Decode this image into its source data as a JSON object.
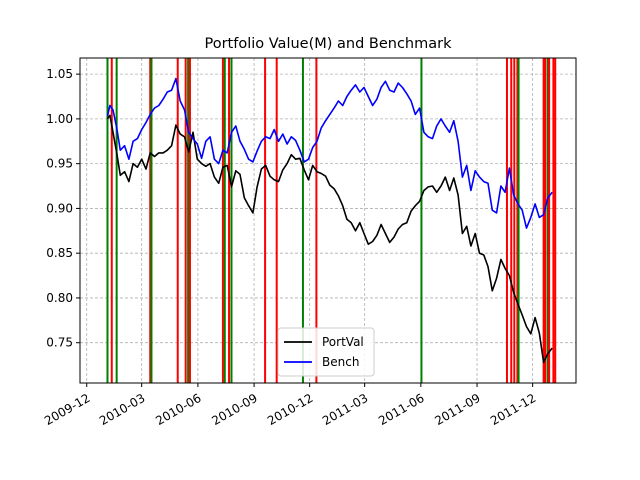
{
  "chart_data": {
    "type": "line",
    "title": "Portfolio Value(M) and Benchmark",
    "xlabel": "",
    "ylabel": "",
    "x_range": [
      "2009-11-20",
      "2012-02-10"
    ],
    "ylim": [
      0.705,
      1.068
    ],
    "x_ticks": [
      "2009-12-01",
      "2010-03-01",
      "2010-06-01",
      "2010-09-01",
      "2010-12-01",
      "2011-03-01",
      "2011-06-01",
      "2011-09-01",
      "2011-12-01"
    ],
    "x_tick_labels": [
      "2009-12",
      "2010-03",
      "2010-06",
      "2010-09",
      "2010-12",
      "2011-03",
      "2011-06",
      "2011-09",
      "2011-12"
    ],
    "y_ticks": [
      0.75,
      0.8,
      0.85,
      0.9,
      0.95,
      1.0,
      1.05
    ],
    "y_tick_labels": [
      "0.75",
      "0.80",
      "0.85",
      "0.90",
      "0.95",
      "1.00",
      "1.05"
    ],
    "grid": true,
    "grid_style": "dashed",
    "legend_position": "bottom-center",
    "series": [
      {
        "name": "PortVal",
        "color": "#000000",
        "points": [
          [
            "2010-01-04",
            1.0
          ],
          [
            "2010-01-08",
            1.004
          ],
          [
            "2010-01-13",
            0.985
          ],
          [
            "2010-01-19",
            0.962
          ],
          [
            "2010-01-25",
            0.937
          ],
          [
            "2010-02-01",
            0.941
          ],
          [
            "2010-02-08",
            0.93
          ],
          [
            "2010-02-15",
            0.95
          ],
          [
            "2010-02-22",
            0.946
          ],
          [
            "2010-03-01",
            0.955
          ],
          [
            "2010-03-08",
            0.944
          ],
          [
            "2010-03-15",
            0.962
          ],
          [
            "2010-03-22",
            0.958
          ],
          [
            "2010-03-29",
            0.962
          ],
          [
            "2010-04-05",
            0.962
          ],
          [
            "2010-04-12",
            0.965
          ],
          [
            "2010-04-19",
            0.97
          ],
          [
            "2010-04-26",
            0.993
          ],
          [
            "2010-05-03",
            0.983
          ],
          [
            "2010-05-10",
            0.98
          ],
          [
            "2010-05-17",
            0.963
          ],
          [
            "2010-05-24",
            0.985
          ],
          [
            "2010-05-31",
            0.955
          ],
          [
            "2010-06-07",
            0.95
          ],
          [
            "2010-06-14",
            0.947
          ],
          [
            "2010-06-21",
            0.95
          ],
          [
            "2010-06-28",
            0.935
          ],
          [
            "2010-07-05",
            0.928
          ],
          [
            "2010-07-12",
            0.946
          ],
          [
            "2010-07-19",
            0.948
          ],
          [
            "2010-07-26",
            0.924
          ],
          [
            "2010-08-02",
            0.942
          ],
          [
            "2010-08-09",
            0.938
          ],
          [
            "2010-08-16",
            0.912
          ],
          [
            "2010-08-23",
            0.903
          ],
          [
            "2010-08-30",
            0.895
          ],
          [
            "2010-09-06",
            0.924
          ],
          [
            "2010-09-13",
            0.944
          ],
          [
            "2010-09-20",
            0.948
          ],
          [
            "2010-09-27",
            0.936
          ],
          [
            "2010-10-04",
            0.932
          ],
          [
            "2010-10-11",
            0.93
          ],
          [
            "2010-10-18",
            0.943
          ],
          [
            "2010-10-25",
            0.95
          ],
          [
            "2010-11-01",
            0.96
          ],
          [
            "2010-11-08",
            0.955
          ],
          [
            "2010-11-15",
            0.956
          ],
          [
            "2010-11-22",
            0.943
          ],
          [
            "2010-11-29",
            0.932
          ],
          [
            "2010-12-06",
            0.948
          ],
          [
            "2010-12-13",
            0.941
          ],
          [
            "2010-12-20",
            0.939
          ],
          [
            "2010-12-27",
            0.936
          ],
          [
            "2011-01-03",
            0.926
          ],
          [
            "2011-01-10",
            0.922
          ],
          [
            "2011-01-17",
            0.914
          ],
          [
            "2011-01-24",
            0.903
          ],
          [
            "2011-01-31",
            0.888
          ],
          [
            "2011-02-07",
            0.884
          ],
          [
            "2011-02-14",
            0.875
          ],
          [
            "2011-02-21",
            0.884
          ],
          [
            "2011-02-28",
            0.872
          ],
          [
            "2011-03-07",
            0.86
          ],
          [
            "2011-03-14",
            0.863
          ],
          [
            "2011-03-21",
            0.87
          ],
          [
            "2011-03-28",
            0.882
          ],
          [
            "2011-04-04",
            0.872
          ],
          [
            "2011-04-11",
            0.862
          ],
          [
            "2011-04-18",
            0.868
          ],
          [
            "2011-04-25",
            0.877
          ],
          [
            "2011-05-02",
            0.882
          ],
          [
            "2011-05-09",
            0.884
          ],
          [
            "2011-05-16",
            0.897
          ],
          [
            "2011-05-23",
            0.903
          ],
          [
            "2011-05-30",
            0.908
          ],
          [
            "2011-06-06",
            0.92
          ],
          [
            "2011-06-13",
            0.924
          ],
          [
            "2011-06-20",
            0.925
          ],
          [
            "2011-06-27",
            0.918
          ],
          [
            "2011-07-04",
            0.925
          ],
          [
            "2011-07-11",
            0.935
          ],
          [
            "2011-07-18",
            0.92
          ],
          [
            "2011-07-25",
            0.934
          ],
          [
            "2011-08-01",
            0.915
          ],
          [
            "2011-08-08",
            0.872
          ],
          [
            "2011-08-15",
            0.88
          ],
          [
            "2011-08-22",
            0.858
          ],
          [
            "2011-08-29",
            0.872
          ],
          [
            "2011-09-05",
            0.85
          ],
          [
            "2011-09-12",
            0.848
          ],
          [
            "2011-09-19",
            0.835
          ],
          [
            "2011-09-26",
            0.808
          ],
          [
            "2011-10-03",
            0.822
          ],
          [
            "2011-10-10",
            0.843
          ],
          [
            "2011-10-17",
            0.833
          ],
          [
            "2011-10-24",
            0.825
          ],
          [
            "2011-10-31",
            0.806
          ],
          [
            "2011-11-07",
            0.793
          ],
          [
            "2011-11-14",
            0.781
          ],
          [
            "2011-11-21",
            0.768
          ],
          [
            "2011-11-28",
            0.76
          ],
          [
            "2011-12-05",
            0.778
          ],
          [
            "2011-12-12",
            0.761
          ],
          [
            "2011-12-19",
            0.728
          ],
          [
            "2011-12-26",
            0.738
          ],
          [
            "2012-01-02",
            0.744
          ]
        ]
      },
      {
        "name": "Bench",
        "color": "#0000ff",
        "points": [
          [
            "2010-01-04",
            1.003
          ],
          [
            "2010-01-08",
            1.015
          ],
          [
            "2010-01-13",
            1.01
          ],
          [
            "2010-01-19",
            0.99
          ],
          [
            "2010-01-25",
            0.965
          ],
          [
            "2010-02-01",
            0.97
          ],
          [
            "2010-02-08",
            0.955
          ],
          [
            "2010-02-15",
            0.975
          ],
          [
            "2010-02-22",
            0.978
          ],
          [
            "2010-03-01",
            0.988
          ],
          [
            "2010-03-08",
            0.996
          ],
          [
            "2010-03-15",
            1.005
          ],
          [
            "2010-03-22",
            1.012
          ],
          [
            "2010-03-29",
            1.015
          ],
          [
            "2010-04-05",
            1.022
          ],
          [
            "2010-04-12",
            1.03
          ],
          [
            "2010-04-19",
            1.032
          ],
          [
            "2010-04-26",
            1.045
          ],
          [
            "2010-05-03",
            1.02
          ],
          [
            "2010-05-10",
            1.01
          ],
          [
            "2010-05-17",
            0.985
          ],
          [
            "2010-05-24",
            0.978
          ],
          [
            "2010-05-31",
            0.972
          ],
          [
            "2010-06-07",
            0.956
          ],
          [
            "2010-06-14",
            0.975
          ],
          [
            "2010-06-21",
            0.98
          ],
          [
            "2010-06-28",
            0.955
          ],
          [
            "2010-07-05",
            0.95
          ],
          [
            "2010-07-12",
            0.965
          ],
          [
            "2010-07-19",
            0.962
          ],
          [
            "2010-07-26",
            0.985
          ],
          [
            "2010-08-02",
            0.992
          ],
          [
            "2010-08-09",
            0.975
          ],
          [
            "2010-08-16",
            0.966
          ],
          [
            "2010-08-23",
            0.955
          ],
          [
            "2010-08-30",
            0.952
          ],
          [
            "2010-09-06",
            0.964
          ],
          [
            "2010-09-13",
            0.975
          ],
          [
            "2010-09-20",
            0.98
          ],
          [
            "2010-09-27",
            0.978
          ],
          [
            "2010-10-04",
            0.988
          ],
          [
            "2010-10-11",
            0.975
          ],
          [
            "2010-10-18",
            0.983
          ],
          [
            "2010-10-25",
            0.972
          ],
          [
            "2010-11-01",
            0.98
          ],
          [
            "2010-11-08",
            0.976
          ],
          [
            "2010-11-15",
            0.965
          ],
          [
            "2010-11-22",
            0.952
          ],
          [
            "2010-11-29",
            0.955
          ],
          [
            "2010-12-06",
            0.968
          ],
          [
            "2010-12-13",
            0.975
          ],
          [
            "2010-12-20",
            0.99
          ],
          [
            "2010-12-27",
            0.998
          ],
          [
            "2011-01-03",
            1.005
          ],
          [
            "2011-01-10",
            1.012
          ],
          [
            "2011-01-17",
            1.02
          ],
          [
            "2011-01-24",
            1.015
          ],
          [
            "2011-01-31",
            1.025
          ],
          [
            "2011-02-07",
            1.032
          ],
          [
            "2011-02-14",
            1.038
          ],
          [
            "2011-02-21",
            1.03
          ],
          [
            "2011-02-28",
            1.035
          ],
          [
            "2011-03-07",
            1.025
          ],
          [
            "2011-03-14",
            1.015
          ],
          [
            "2011-03-21",
            1.022
          ],
          [
            "2011-03-28",
            1.035
          ],
          [
            "2011-04-04",
            1.042
          ],
          [
            "2011-04-11",
            1.032
          ],
          [
            "2011-04-18",
            1.03
          ],
          [
            "2011-04-25",
            1.04
          ],
          [
            "2011-05-02",
            1.035
          ],
          [
            "2011-05-09",
            1.028
          ],
          [
            "2011-05-16",
            1.02
          ],
          [
            "2011-05-23",
            1.005
          ],
          [
            "2011-05-30",
            1.012
          ],
          [
            "2011-06-06",
            0.985
          ],
          [
            "2011-06-13",
            0.98
          ],
          [
            "2011-06-20",
            0.978
          ],
          [
            "2011-06-27",
            0.992
          ],
          [
            "2011-07-04",
            1.0
          ],
          [
            "2011-07-11",
            0.992
          ],
          [
            "2011-07-18",
            0.985
          ],
          [
            "2011-07-25",
            0.998
          ],
          [
            "2011-08-01",
            0.975
          ],
          [
            "2011-08-08",
            0.935
          ],
          [
            "2011-08-15",
            0.948
          ],
          [
            "2011-08-22",
            0.92
          ],
          [
            "2011-08-29",
            0.942
          ],
          [
            "2011-09-05",
            0.935
          ],
          [
            "2011-09-12",
            0.93
          ],
          [
            "2011-09-19",
            0.928
          ],
          [
            "2011-09-26",
            0.898
          ],
          [
            "2011-10-03",
            0.895
          ],
          [
            "2011-10-10",
            0.925
          ],
          [
            "2011-10-17",
            0.918
          ],
          [
            "2011-10-24",
            0.945
          ],
          [
            "2011-10-31",
            0.915
          ],
          [
            "2011-11-07",
            0.905
          ],
          [
            "2011-11-14",
            0.898
          ],
          [
            "2011-11-21",
            0.878
          ],
          [
            "2011-11-28",
            0.89
          ],
          [
            "2011-12-05",
            0.905
          ],
          [
            "2011-12-12",
            0.89
          ],
          [
            "2011-12-19",
            0.893
          ],
          [
            "2011-12-26",
            0.912
          ],
          [
            "2012-01-02",
            0.918
          ]
        ]
      }
    ],
    "vertical_lines": [
      {
        "date": "2010-01-04",
        "color": "#008000"
      },
      {
        "date": "2010-01-11",
        "color": "#ff0000"
      },
      {
        "date": "2010-01-19",
        "color": "#008000"
      },
      {
        "date": "2010-03-15",
        "color": "#ff0000"
      },
      {
        "date": "2010-03-17",
        "color": "#008000"
      },
      {
        "date": "2010-04-29",
        "color": "#ff0000"
      },
      {
        "date": "2010-05-12",
        "color": "#ff0000"
      },
      {
        "date": "2010-05-16",
        "color": "#008000"
      },
      {
        "date": "2010-05-19",
        "color": "#ff0000"
      },
      {
        "date": "2010-07-12",
        "color": "#ff0000"
      },
      {
        "date": "2010-07-15",
        "color": "#008000"
      },
      {
        "date": "2010-07-22",
        "color": "#ff0000"
      },
      {
        "date": "2010-07-26",
        "color": "#008000"
      },
      {
        "date": "2010-09-19",
        "color": "#ff0000"
      },
      {
        "date": "2010-10-08",
        "color": "#ff0000"
      },
      {
        "date": "2010-11-20",
        "color": "#008000"
      },
      {
        "date": "2010-12-12",
        "color": "#ff0000"
      },
      {
        "date": "2011-06-02",
        "color": "#008000"
      },
      {
        "date": "2011-10-20",
        "color": "#ff0000"
      },
      {
        "date": "2011-10-27",
        "color": "#ff0000"
      },
      {
        "date": "2011-11-01",
        "color": "#ff0000"
      },
      {
        "date": "2011-11-06",
        "color": "#ff0000"
      },
      {
        "date": "2011-11-08",
        "color": "#008000"
      },
      {
        "date": "2011-12-19",
        "color": "#ff0000"
      },
      {
        "date": "2011-12-22",
        "color": "#ff0000"
      },
      {
        "date": "2011-12-26",
        "color": "#008000"
      },
      {
        "date": "2011-12-28",
        "color": "#ff0000"
      },
      {
        "date": "2012-01-04",
        "color": "#ff0000"
      },
      {
        "date": "2012-01-07",
        "color": "#ff0000"
      }
    ]
  }
}
